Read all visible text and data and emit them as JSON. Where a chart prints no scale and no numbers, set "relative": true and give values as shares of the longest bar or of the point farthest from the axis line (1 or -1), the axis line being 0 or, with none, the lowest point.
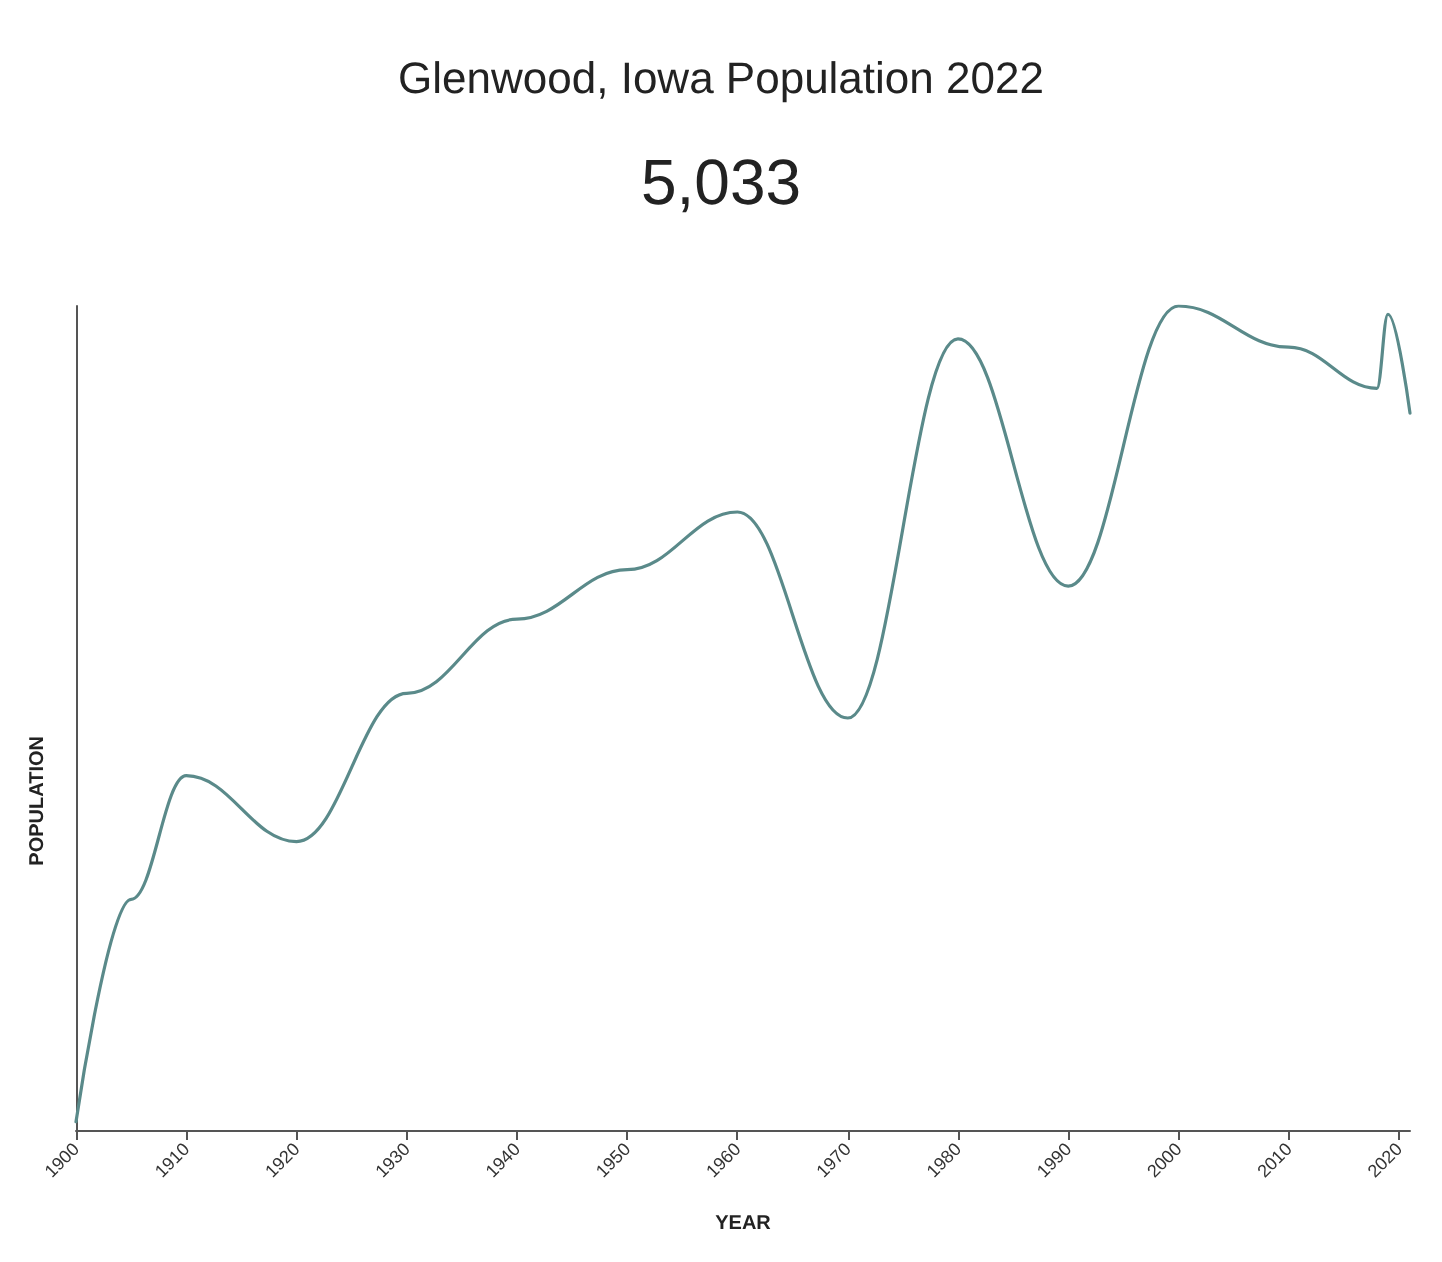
{
  "chart_data": {
    "type": "line",
    "title": "Glenwood, Iowa Population 2022",
    "subtitle": "5,033",
    "xlabel": "YEAR",
    "ylabel": "POPULATION",
    "relative": true,
    "x": [
      1900,
      1905,
      1910,
      1920,
      1930,
      1940,
      1950,
      1960,
      1970,
      1980,
      1990,
      2000,
      2010,
      2018,
      2019,
      2021
    ],
    "series": [
      {
        "color": "#5a8a8a",
        "values": [
          0.01,
          0.28,
          0.43,
          0.35,
          0.53,
          0.62,
          0.68,
          0.75,
          0.5,
          0.96,
          0.66,
          1,
          0.95,
          0.9,
          0.99,
          0.87
        ]
      }
    ],
    "xlim": [
      1900,
      2021
    ],
    "xticks": [
      1900,
      1910,
      1920,
      1930,
      1940,
      1950,
      1960,
      1970,
      1980,
      1990,
      2000,
      2010,
      2020
    ],
    "grid": false,
    "marker": "none",
    "line_style": "solid"
  }
}
